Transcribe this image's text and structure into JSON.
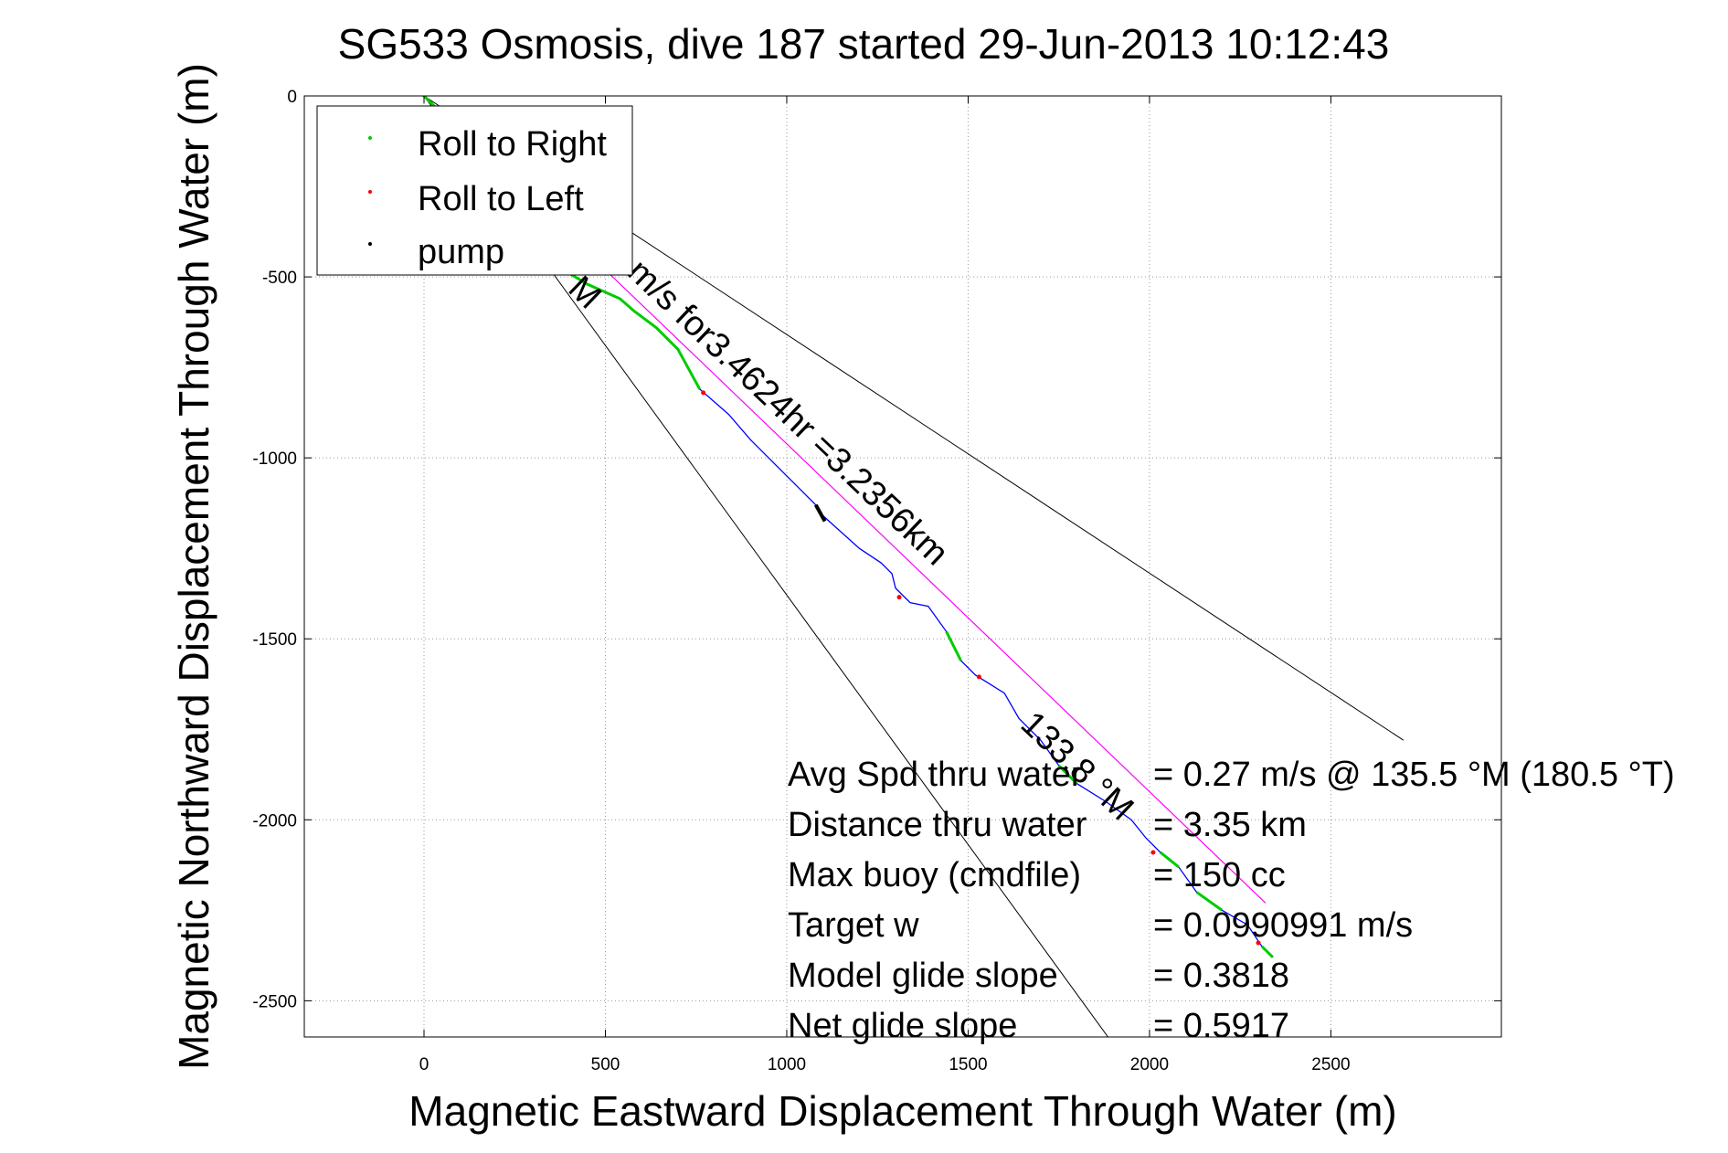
{
  "chart_data": {
    "type": "line",
    "title": "SG533 Osmosis, dive 187 started 29-Jun-2013 10:12:43",
    "xlabel": "Magnetic Eastward Displacement Through Water (m)",
    "ylabel": "Magnetic Northward Displacement Through Water (m)",
    "xlim": [
      -330,
      2970
    ],
    "ylim": [
      -2600,
      0
    ],
    "xticks": [
      0,
      500,
      1000,
      1500,
      2000,
      2500
    ],
    "xtick_labels": [
      "0",
      "500",
      "1000",
      "1500",
      "2000",
      "2500"
    ],
    "yticks": [
      0,
      -500,
      -1000,
      -1500,
      -2000,
      -2500
    ],
    "ytick_labels": [
      "0",
      "-500",
      "-1000",
      "-1500",
      "-2000",
      "-2500"
    ],
    "grid": true,
    "legend_position": "top-left",
    "legend": [
      {
        "label": "Roll to Right",
        "color": "#00cc00"
      },
      {
        "label": "Roll to Left",
        "color": "#ff0000"
      },
      {
        "label": "pump",
        "color": "#000000"
      }
    ],
    "track_colors": {
      "track": "#0000ff",
      "roll_right": "#00cc00",
      "roll_left": "#ff0000",
      "pump": "#000000",
      "heading_line": "#ff00ff",
      "sector_lines": "#000000"
    },
    "track": [
      {
        "x": -30,
        "y": 20
      },
      {
        "x": 0,
        "y": 0
      },
      {
        "x": 30,
        "y": -30
      },
      {
        "x": 80,
        "y": -150
      },
      {
        "x": 150,
        "y": -300
      },
      {
        "x": 300,
        "y": -430
      },
      {
        "x": 450,
        "y": -520
      },
      {
        "x": 540,
        "y": -560
      },
      {
        "x": 580,
        "y": -595
      },
      {
        "x": 640,
        "y": -640
      },
      {
        "x": 700,
        "y": -700
      },
      {
        "x": 760,
        "y": -810
      },
      {
        "x": 840,
        "y": -880
      },
      {
        "x": 900,
        "y": -950
      },
      {
        "x": 940,
        "y": -990
      },
      {
        "x": 1030,
        "y": -1080
      },
      {
        "x": 1080,
        "y": -1130
      },
      {
        "x": 1100,
        "y": -1160
      },
      {
        "x": 1200,
        "y": -1250
      },
      {
        "x": 1260,
        "y": -1290
      },
      {
        "x": 1290,
        "y": -1320
      },
      {
        "x": 1300,
        "y": -1360
      },
      {
        "x": 1340,
        "y": -1400
      },
      {
        "x": 1390,
        "y": -1410
      },
      {
        "x": 1440,
        "y": -1480
      },
      {
        "x": 1480,
        "y": -1560
      },
      {
        "x": 1520,
        "y": -1600
      },
      {
        "x": 1600,
        "y": -1650
      },
      {
        "x": 1640,
        "y": -1720
      },
      {
        "x": 1700,
        "y": -1780
      },
      {
        "x": 1750,
        "y": -1850
      },
      {
        "x": 1800,
        "y": -1900
      },
      {
        "x": 1880,
        "y": -1950
      },
      {
        "x": 1950,
        "y": -2000
      },
      {
        "x": 1990,
        "y": -2050
      },
      {
        "x": 2030,
        "y": -2090
      },
      {
        "x": 2080,
        "y": -2130
      },
      {
        "x": 2130,
        "y": -2200
      },
      {
        "x": 2200,
        "y": -2250
      },
      {
        "x": 2270,
        "y": -2290
      },
      {
        "x": 2310,
        "y": -2350
      },
      {
        "x": 2340,
        "y": -2380
      }
    ],
    "roll_right_segments": [
      [
        0,
        11
      ],
      [
        24,
        25
      ],
      [
        30,
        31
      ],
      [
        35,
        36
      ],
      [
        37,
        38
      ],
      [
        40,
        41
      ]
    ],
    "roll_left_points": [
      {
        "x": 770,
        "y": -820
      },
      {
        "x": 1310,
        "y": -1385
      },
      {
        "x": 1530,
        "y": -1605
      },
      {
        "x": 2010,
        "y": -2090
      },
      {
        "x": 2300,
        "y": -2340
      }
    ],
    "pump_segment": {
      "x": [
        1080,
        1105
      ],
      "y": [
        -1130,
        -1175
      ]
    },
    "heading_line": {
      "x": [
        0,
        2320
      ],
      "y": [
        0,
        -2230
      ]
    },
    "sector_lines": [
      {
        "x": [
          0,
          2700
        ],
        "y": [
          0,
          -1780
        ]
      },
      {
        "x": [
          0,
          1900
        ],
        "y": [
          0,
          -2620
        ]
      }
    ],
    "annotations": {
      "heading_label": "m/s for3.4624hr =3.2356km",
      "heading_label_prefix": "M",
      "deg_label": "133.8 °M"
    },
    "stats": [
      {
        "label": "Avg Spd thru water",
        "value": "=  0.27 m/s @ 135.5 °M (180.5 °T)"
      },
      {
        "label": "Distance thru water",
        "value": "=  3.35 km"
      },
      {
        "label": "Max buoy (cmdfile)",
        "value": "= 150 cc"
      },
      {
        "label": "Target w",
        "value": "= 0.0990991 m/s"
      },
      {
        "label": "Model glide slope",
        "value": "= 0.3818"
      },
      {
        "label": "Net glide slope",
        "value": "= 0.5917"
      }
    ]
  }
}
